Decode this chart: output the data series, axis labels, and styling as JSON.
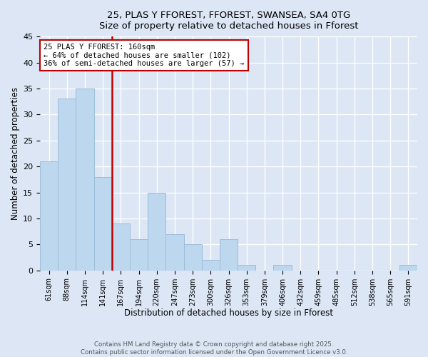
{
  "title_line1": "25, PLAS Y FFOREST, FFOREST, SWANSEA, SA4 0TG",
  "title_line2": "Size of property relative to detached houses in Fforest",
  "xlabel": "Distribution of detached houses by size in Fforest",
  "ylabel": "Number of detached properties",
  "bar_labels": [
    "61sqm",
    "88sqm",
    "114sqm",
    "141sqm",
    "167sqm",
    "194sqm",
    "220sqm",
    "247sqm",
    "273sqm",
    "300sqm",
    "326sqm",
    "353sqm",
    "379sqm",
    "406sqm",
    "432sqm",
    "459sqm",
    "485sqm",
    "512sqm",
    "538sqm",
    "565sqm",
    "591sqm"
  ],
  "bar_values": [
    21,
    33,
    35,
    18,
    9,
    6,
    15,
    7,
    5,
    2,
    6,
    1,
    0,
    1,
    0,
    0,
    0,
    0,
    0,
    0,
    1
  ],
  "bar_color": "#bdd7ee",
  "bar_edge_color": "#9dbdd8",
  "reference_line_x": 4,
  "reference_line_color": "#c00000",
  "annotation_text": "25 PLAS Y FFOREST: 160sqm\n← 64% of detached houses are smaller (102)\n36% of semi-detached houses are larger (57) →",
  "annotation_box_color": "#c00000",
  "ylim": [
    0,
    45
  ],
  "yticks": [
    0,
    5,
    10,
    15,
    20,
    25,
    30,
    35,
    40,
    45
  ],
  "background_color": "#dce6f5",
  "plot_bg_color": "#dce6f5",
  "grid_color": "#ffffff",
  "footer_line1": "Contains HM Land Registry data © Crown copyright and database right 2025.",
  "footer_line2": "Contains public sector information licensed under the Open Government Licence v3.0."
}
